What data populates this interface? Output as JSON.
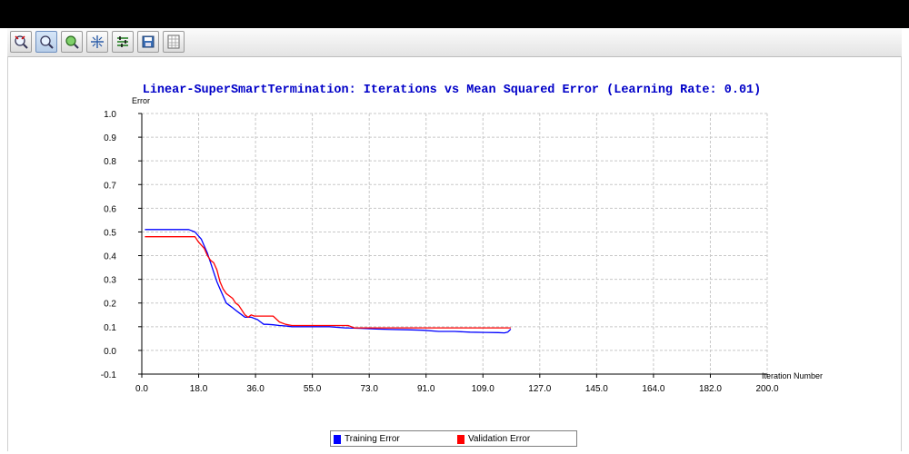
{
  "toolbar": {
    "buttons": [
      {
        "icon": "zoom-reset-icon",
        "active": false
      },
      {
        "icon": "zoom-icon",
        "active": true
      },
      {
        "icon": "pan-icon",
        "active": false
      },
      {
        "icon": "fit-icon",
        "active": false
      },
      {
        "icon": "options-icon",
        "active": false
      },
      {
        "icon": "save-icon",
        "active": false
      },
      {
        "icon": "table-icon",
        "active": false
      }
    ]
  },
  "chart_data": {
    "type": "line",
    "title": "Linear-SuperSmartTermination: Iterations vs Mean Squared Error (Learning Rate: 0.01)",
    "xlabel": "Iteration Number",
    "ylabel": "Error",
    "xlim": [
      0,
      200
    ],
    "ylim": [
      -0.1,
      1.0
    ],
    "x_ticks": [
      "0.0",
      "18.0",
      "36.0",
      "55.0",
      "73.0",
      "91.0",
      "109.0",
      "127.0",
      "145.0",
      "164.0",
      "182.0",
      "200.0"
    ],
    "y_ticks": [
      "1.0",
      "0.9",
      "0.8",
      "0.7",
      "0.6",
      "0.5",
      "0.4",
      "0.3",
      "0.2",
      "0.1",
      "0.0",
      "-0.1"
    ],
    "grid": true,
    "legend_position": "bottom-center",
    "series": [
      {
        "name": "Training Error",
        "color": "#0000ff",
        "points": [
          [
            1,
            0.51
          ],
          [
            10,
            0.51
          ],
          [
            15,
            0.51
          ],
          [
            17,
            0.5
          ],
          [
            19,
            0.47
          ],
          [
            20,
            0.44
          ],
          [
            21,
            0.41
          ],
          [
            22,
            0.37
          ],
          [
            23,
            0.33
          ],
          [
            24,
            0.29
          ],
          [
            25,
            0.26
          ],
          [
            26,
            0.23
          ],
          [
            27,
            0.2
          ],
          [
            28,
            0.19
          ],
          [
            29,
            0.18
          ],
          [
            30,
            0.17
          ],
          [
            31,
            0.16
          ],
          [
            32,
            0.15
          ],
          [
            33,
            0.14
          ],
          [
            34,
            0.14
          ],
          [
            35,
            0.14
          ],
          [
            36,
            0.135
          ],
          [
            37,
            0.13
          ],
          [
            38,
            0.12
          ],
          [
            39,
            0.11
          ],
          [
            40,
            0.11
          ],
          [
            42,
            0.108
          ],
          [
            44,
            0.105
          ],
          [
            46,
            0.103
          ],
          [
            48,
            0.1
          ],
          [
            52,
            0.1
          ],
          [
            56,
            0.1
          ],
          [
            60,
            0.1
          ],
          [
            65,
            0.095
          ],
          [
            70,
            0.093
          ],
          [
            75,
            0.09
          ],
          [
            80,
            0.088
          ],
          [
            85,
            0.087
          ],
          [
            90,
            0.085
          ],
          [
            95,
            0.08
          ],
          [
            100,
            0.08
          ],
          [
            105,
            0.077
          ],
          [
            110,
            0.076
          ],
          [
            114,
            0.075
          ],
          [
            116,
            0.074
          ],
          [
            117,
            0.077
          ],
          [
            118,
            0.09
          ]
        ]
      },
      {
        "name": "Validation Error",
        "color": "#ff0000",
        "points": [
          [
            1,
            0.48
          ],
          [
            10,
            0.48
          ],
          [
            15,
            0.48
          ],
          [
            17,
            0.48
          ],
          [
            18,
            0.46
          ],
          [
            20,
            0.43
          ],
          [
            21,
            0.4
          ],
          [
            22,
            0.38
          ],
          [
            23,
            0.37
          ],
          [
            24,
            0.34
          ],
          [
            25,
            0.29
          ],
          [
            26,
            0.26
          ],
          [
            27,
            0.24
          ],
          [
            28,
            0.23
          ],
          [
            29,
            0.22
          ],
          [
            30,
            0.2
          ],
          [
            31,
            0.19
          ],
          [
            32,
            0.17
          ],
          [
            33,
            0.15
          ],
          [
            34,
            0.14
          ],
          [
            35,
            0.15
          ],
          [
            36,
            0.145
          ],
          [
            38,
            0.145
          ],
          [
            42,
            0.145
          ],
          [
            44,
            0.12
          ],
          [
            46,
            0.11
          ],
          [
            48,
            0.105
          ],
          [
            52,
            0.105
          ],
          [
            60,
            0.105
          ],
          [
            66,
            0.105
          ],
          [
            67,
            0.1
          ],
          [
            68,
            0.095
          ],
          [
            75,
            0.095
          ],
          [
            85,
            0.095
          ],
          [
            95,
            0.095
          ],
          [
            105,
            0.095
          ],
          [
            112,
            0.095
          ],
          [
            118,
            0.095
          ]
        ]
      }
    ]
  }
}
